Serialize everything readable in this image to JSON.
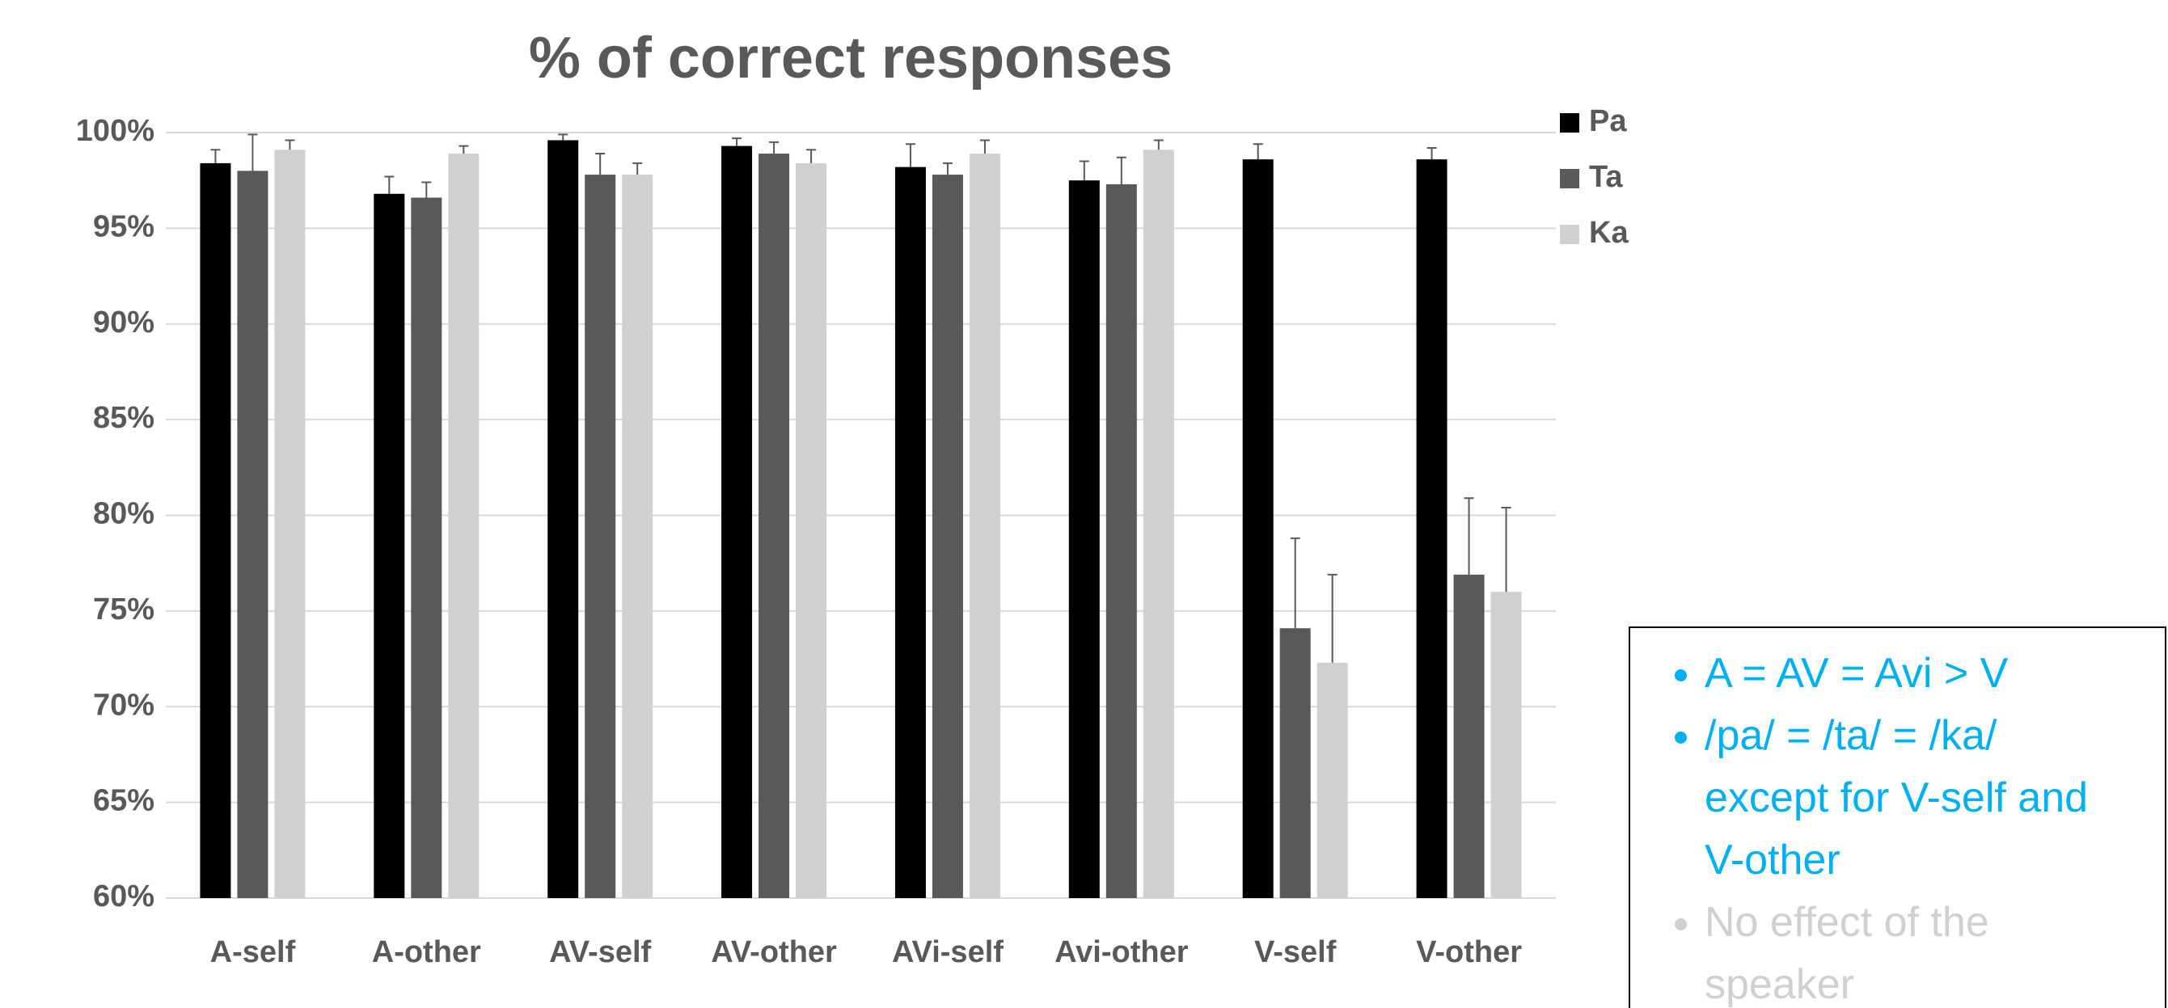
{
  "chart_data": {
    "type": "bar",
    "title": "% of correct responses",
    "categories": [
      "A-self",
      "A-other",
      "AV-self",
      "AV-other",
      "AVi-self",
      "Avi-other",
      "V-self",
      "V-other"
    ],
    "series": [
      {
        "name": "Pa",
        "color": "#000000",
        "values": [
          98.4,
          96.8,
          99.6,
          99.3,
          98.2,
          97.5,
          98.6,
          98.6
        ],
        "errors": [
          0.7,
          0.9,
          0.3,
          0.4,
          1.2,
          1.0,
          0.8,
          0.6
        ]
      },
      {
        "name": "Ta",
        "color": "#595959",
        "values": [
          98.0,
          96.6,
          97.8,
          98.9,
          97.8,
          97.3,
          74.1,
          76.9
        ],
        "errors": [
          1.9,
          0.8,
          1.1,
          0.6,
          0.6,
          1.4,
          4.7,
          4.0
        ]
      },
      {
        "name": "Ka",
        "color": "#d0d0d0",
        "values": [
          99.1,
          98.9,
          97.8,
          98.4,
          98.9,
          99.1,
          72.3,
          76.0
        ],
        "errors": [
          0.5,
          0.4,
          0.6,
          0.7,
          0.7,
          0.5,
          4.6,
          4.4
        ]
      }
    ],
    "ylim": [
      60,
      100
    ],
    "yticks": [
      {
        "value": 60,
        "label": "60%"
      },
      {
        "value": 65,
        "label": "65%"
      },
      {
        "value": 70,
        "label": "70%"
      },
      {
        "value": 75,
        "label": "75%"
      },
      {
        "value": 80,
        "label": "80%"
      },
      {
        "value": 85,
        "label": "85%"
      },
      {
        "value": 90,
        "label": "90%"
      },
      {
        "value": 95,
        "label": "95%"
      },
      {
        "value": 100,
        "label": "100%"
      }
    ],
    "grid": true,
    "legend": "top-right",
    "notes": [
      {
        "text": "A = AV = Avi > V",
        "color": "#00b0f0"
      },
      {
        "text": "/pa/ = /ta/ = /ka/ except for V-self and V-other",
        "color": "#00b0f0"
      },
      {
        "text": "No effect of the speaker",
        "color": "#d0d0d0"
      }
    ]
  }
}
